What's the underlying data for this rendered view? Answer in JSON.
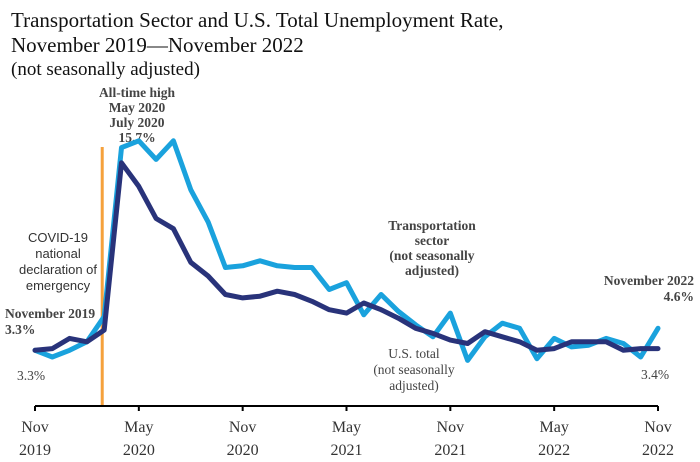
{
  "chart_data": {
    "type": "line",
    "title": [
      "Transportation Sector and U.S. Total Unemployment Rate,",
      "November 2019—November 2022"
    ],
    "subtitle": "(not seasonally adjusted)",
    "x": [
      "Nov 2019",
      "Dec 2019",
      "Jan 2020",
      "Feb 2020",
      "Mar 2020",
      "Apr 2020",
      "May 2020",
      "Jun 2020",
      "Jul 2020",
      "Aug 2020",
      "Sep 2020",
      "Oct 2020",
      "Nov 2020",
      "Dec 2020",
      "Jan 2021",
      "Feb 2021",
      "Mar 2021",
      "Apr 2021",
      "May 2021",
      "Jun 2021",
      "Jul 2021",
      "Aug 2021",
      "Sep 2021",
      "Oct 2021",
      "Nov 2021",
      "Dec 2021",
      "Jan 2022",
      "Feb 2022",
      "Mar 2022",
      "Apr 2022",
      "May 2022",
      "Jun 2022",
      "Jul 2022",
      "Aug 2022",
      "Sep 2022",
      "Oct 2022",
      "Nov 2022"
    ],
    "x_tick_labels": [
      {
        "month": "Nov",
        "year": "2019",
        "index": 0
      },
      {
        "month": "May",
        "year": "2020",
        "index": 6
      },
      {
        "month": "Nov",
        "year": "2020",
        "index": 12
      },
      {
        "month": "May",
        "year": "2021",
        "index": 18
      },
      {
        "month": "Nov",
        "year": "2021",
        "index": 24
      },
      {
        "month": "May",
        "year": "2022",
        "index": 30
      },
      {
        "month": "Nov",
        "year": "2022",
        "index": 36
      }
    ],
    "ylim": [
      0,
      18
    ],
    "series": [
      {
        "key": "transportation",
        "color": "#1aa2dd",
        "values": [
          3.3,
          2.9,
          3.3,
          3.8,
          5.3,
          15.3,
          15.7,
          14.6,
          15.7,
          12.8,
          10.9,
          8.2,
          8.3,
          8.6,
          8.3,
          8.2,
          8.2,
          6.9,
          7.3,
          5.4,
          6.6,
          5.6,
          4.8,
          4.1,
          5.5,
          2.7,
          4.1,
          4.9,
          4.6,
          2.8,
          4.0,
          3.5,
          3.6,
          4.0,
          3.7,
          2.9,
          4.6
        ]
      },
      {
        "key": "us-total",
        "color": "#29337a",
        "values": [
          3.3,
          3.4,
          4.0,
          3.8,
          4.5,
          14.4,
          13.0,
          11.1,
          10.5,
          8.5,
          7.7,
          6.6,
          6.4,
          6.5,
          6.8,
          6.6,
          6.2,
          5.7,
          5.5,
          6.1,
          5.7,
          5.2,
          4.6,
          4.3,
          3.9,
          3.7,
          4.4,
          4.1,
          3.8,
          3.3,
          3.4,
          3.8,
          3.8,
          3.8,
          3.3,
          3.4,
          3.4
        ]
      }
    ],
    "marker_line": {
      "after_index": 4,
      "color": "#f5a13c",
      "label": "COVID-19 national declaration of emergency"
    },
    "annotations": {
      "peak": [
        "All-time high",
        "May 2020",
        "July 2020",
        "15.7%"
      ],
      "covid": [
        "COVID-19",
        "national",
        "declaration of",
        "emergency"
      ],
      "start_bold": [
        "November 2019",
        "3.3%"
      ],
      "start_value": "3.3%",
      "transport_label": [
        "Transportation",
        "sector",
        "(not seasonally",
        "adjusted)"
      ],
      "us_total_label": [
        "U.S. total",
        "(not seasonally",
        "adjusted)"
      ],
      "end_bold": [
        "November 2022",
        "4.6%"
      ],
      "end_value": "3.4%"
    },
    "grid": false,
    "legend": "none"
  }
}
